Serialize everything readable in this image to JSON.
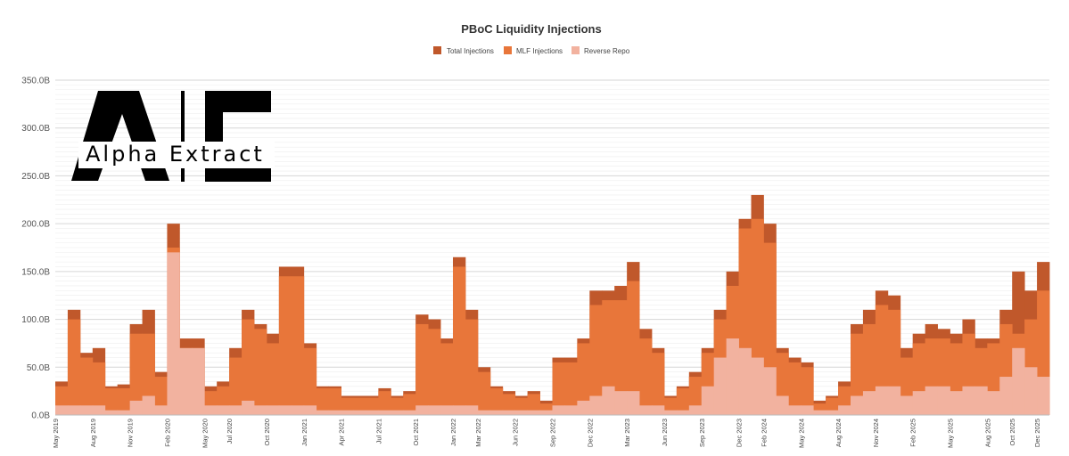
{
  "chart_data": {
    "type": "area",
    "title": "PBoC Liquidity Injections",
    "xlabel": "",
    "ylabel": "",
    "ylim": [
      0,
      350
    ],
    "y_unit": "B",
    "y_ticks": [
      "0.0B",
      "50.0B",
      "100.0B",
      "150.0B",
      "200.0B",
      "250.0B",
      "300.0B",
      "350.0B"
    ],
    "grid": true,
    "legend_position": "top-center",
    "x_tick_labels": [
      "May 2019",
      "Aug 2019",
      "Nov 2019",
      "Feb 2020",
      "May 2020",
      "Jul 2020",
      "Oct 2020",
      "Jan 2021",
      "Apr 2021",
      "Jul 2021",
      "Oct 2021",
      "Jan 2022",
      "Mar 2022",
      "Jun 2022",
      "Sep 2022",
      "Dec 2022",
      "Mar 2023",
      "Jun 2023",
      "Sep 2023",
      "Dec 2023",
      "Feb 2024",
      "May 2024",
      "Aug 2024",
      "Nov 2024",
      "Feb 2025",
      "May 2025",
      "Aug 2025",
      "Oct 2025",
      "Dec 2025"
    ],
    "x_tick_index": [
      0,
      3,
      6,
      9,
      12,
      14,
      17,
      20,
      23,
      26,
      29,
      32,
      34,
      37,
      40,
      43,
      46,
      49,
      52,
      55,
      57,
      60,
      63,
      66,
      69,
      72,
      75,
      77,
      79
    ],
    "months": [
      "2019-05",
      "2019-06",
      "2019-07",
      "2019-08",
      "2019-09",
      "2019-10",
      "2019-11",
      "2019-12",
      "2020-01",
      "2020-02",
      "2020-03",
      "2020-04",
      "2020-05",
      "2020-06",
      "2020-07",
      "2020-08",
      "2020-09",
      "2020-10",
      "2020-11",
      "2020-12",
      "2021-01",
      "2021-02",
      "2021-03",
      "2021-04",
      "2021-05",
      "2021-06",
      "2021-07",
      "2021-08",
      "2021-09",
      "2021-10",
      "2021-11",
      "2021-12",
      "2022-01",
      "2022-02",
      "2022-03",
      "2022-04",
      "2022-05",
      "2022-06",
      "2022-07",
      "2022-08",
      "2022-09",
      "2022-10",
      "2022-11",
      "2022-12",
      "2023-01",
      "2023-02",
      "2023-03",
      "2023-04",
      "2023-05",
      "2023-06",
      "2023-07",
      "2023-08",
      "2023-09",
      "2023-10",
      "2023-11",
      "2023-12",
      "2024-01",
      "2024-02",
      "2024-03",
      "2024-04",
      "2024-05",
      "2024-06",
      "2024-07",
      "2024-08",
      "2024-09",
      "2024-10",
      "2024-11",
      "2024-12",
      "2025-01",
      "2025-02",
      "2025-03",
      "2025-04",
      "2025-05",
      "2025-06",
      "2025-07",
      "2025-08",
      "2025-09",
      "2025-10",
      "2025-11",
      "2025-12"
    ],
    "series": [
      {
        "name": "Total Injections",
        "color": "#c0582b",
        "values": [
          35,
          110,
          65,
          70,
          30,
          32,
          95,
          110,
          45,
          200,
          80,
          80,
          30,
          35,
          70,
          110,
          95,
          85,
          155,
          155,
          75,
          30,
          30,
          20,
          20,
          20,
          28,
          20,
          25,
          105,
          100,
          80,
          165,
          110,
          50,
          30,
          25,
          20,
          25,
          15,
          60,
          60,
          80,
          130,
          130,
          135,
          160,
          90,
          70,
          20,
          30,
          45,
          70,
          110,
          150,
          205,
          230,
          200,
          70,
          60,
          55,
          15,
          20,
          35,
          95,
          110,
          130,
          125,
          70,
          85,
          95,
          90,
          85,
          100,
          80,
          80,
          110,
          150,
          130,
          160
        ]
      },
      {
        "name": "MLF Injections",
        "color": "#e8763a",
        "values": [
          30,
          100,
          60,
          55,
          28,
          28,
          85,
          85,
          40,
          175,
          70,
          70,
          25,
          30,
          60,
          100,
          90,
          75,
          145,
          145,
          70,
          28,
          28,
          18,
          18,
          18,
          25,
          18,
          22,
          95,
          90,
          75,
          155,
          100,
          45,
          28,
          22,
          18,
          22,
          12,
          55,
          55,
          75,
          115,
          120,
          120,
          140,
          80,
          65,
          18,
          28,
          40,
          65,
          100,
          135,
          195,
          205,
          180,
          65,
          55,
          50,
          12,
          18,
          30,
          85,
          95,
          115,
          110,
          60,
          75,
          80,
          80,
          75,
          85,
          70,
          75,
          95,
          85,
          100,
          130
        ]
      },
      {
        "name": "Reverse Repo",
        "color": "#f2b29f",
        "values": [
          10,
          10,
          10,
          10,
          5,
          5,
          15,
          20,
          10,
          170,
          70,
          70,
          10,
          10,
          10,
          15,
          10,
          10,
          10,
          10,
          10,
          5,
          5,
          5,
          5,
          5,
          5,
          5,
          5,
          10,
          10,
          10,
          10,
          10,
          5,
          5,
          5,
          5,
          5,
          5,
          10,
          10,
          15,
          20,
          30,
          25,
          25,
          10,
          10,
          5,
          5,
          10,
          30,
          60,
          80,
          70,
          60,
          50,
          20,
          10,
          10,
          5,
          5,
          10,
          20,
          25,
          30,
          30,
          20,
          25,
          30,
          30,
          25,
          30,
          30,
          25,
          40,
          70,
          50,
          40
        ]
      }
    ]
  },
  "watermark": {
    "top_letters": "A|E",
    "text": "Alpha Extract"
  }
}
